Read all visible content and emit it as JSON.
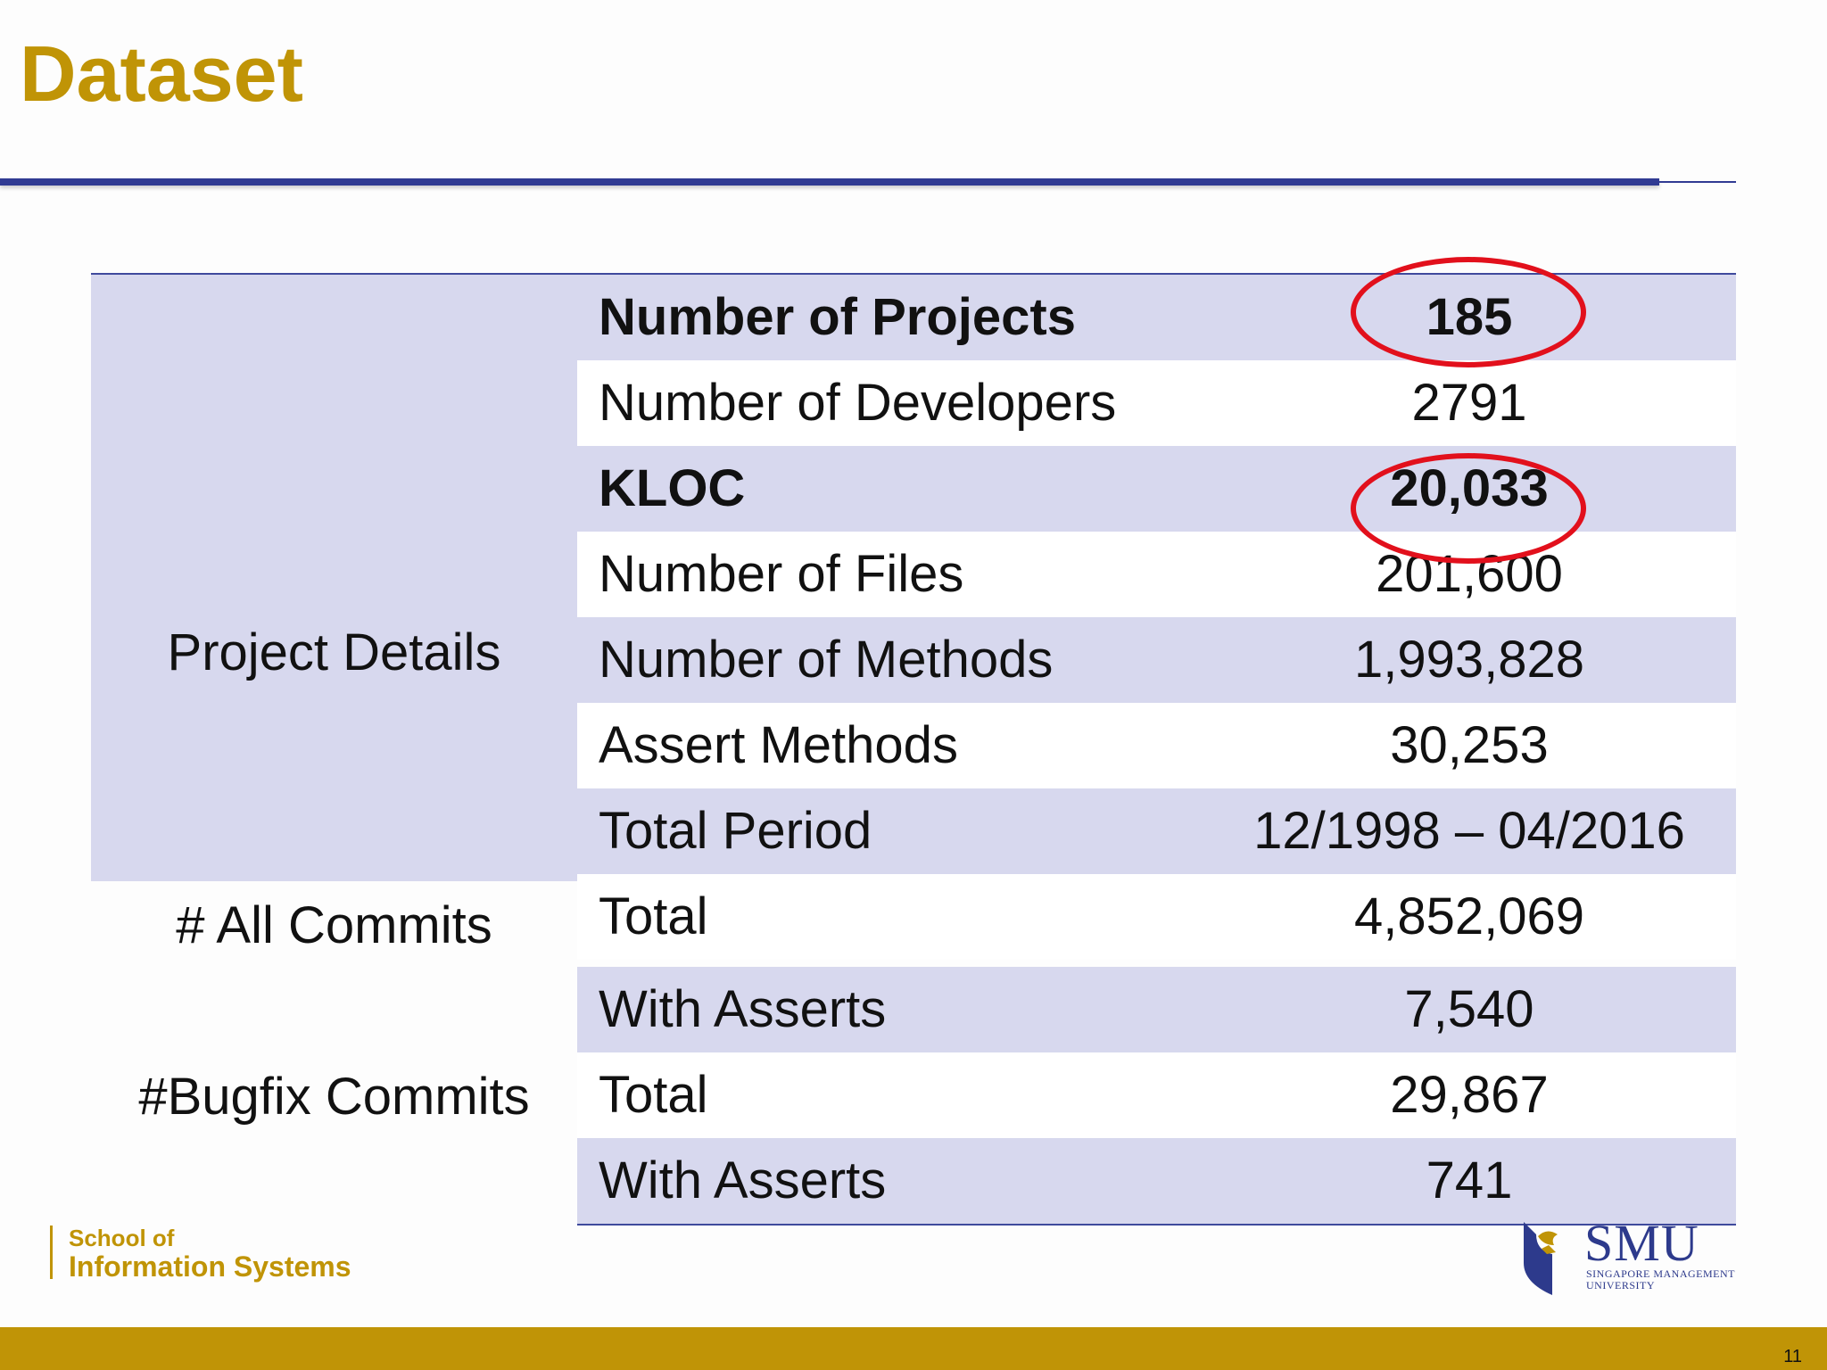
{
  "slide": {
    "title": "Dataset",
    "page_number": "11"
  },
  "groups": {
    "project_details": "Project Details",
    "all_commits": "# All Commits",
    "bugfix_commits": "#Bugfix Commits"
  },
  "rows": [
    {
      "label": "Number of Projects",
      "value": "185",
      "bold": true,
      "circled": true
    },
    {
      "label": "Number of Developers",
      "value": "2791"
    },
    {
      "label": "KLOC",
      "value": "20,033",
      "bold": true,
      "circled": true
    },
    {
      "label": "Number of Files",
      "value": "201,600"
    },
    {
      "label": "Number of Methods",
      "value": "1,993,828"
    },
    {
      "label": "Assert Methods",
      "value": "30,253"
    },
    {
      "label": "Total Period",
      "value": "12/1998 – 04/2016"
    },
    {
      "label": "Total",
      "value": "4,852,069"
    },
    {
      "label": "With Asserts",
      "value": "7,540"
    },
    {
      "label": "Total",
      "value": "29,867"
    },
    {
      "label": "With Asserts",
      "value": "741"
    }
  ],
  "footer": {
    "school_line1": "School of",
    "school_line2": "Information Systems",
    "logo_text": "SMU",
    "logo_subtext_1": "SINGAPORE MANAGEMENT",
    "logo_subtext_2": "UNIVERSITY"
  },
  "colors": {
    "title": "#c09406",
    "rule": "#313b93",
    "shaded_row": "#d7d8ee",
    "highlight_circle": "#e2101c",
    "bottom_bar": "#c09406"
  }
}
